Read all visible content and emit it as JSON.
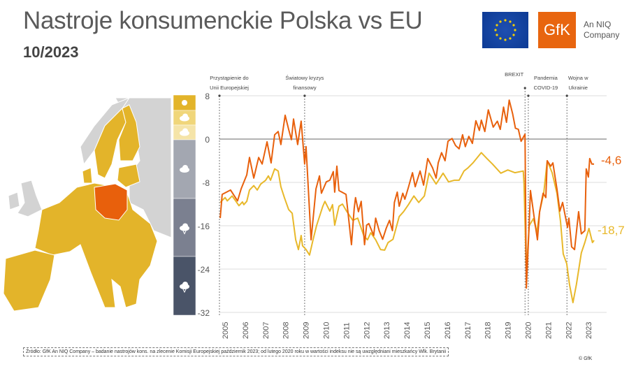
{
  "header": {
    "title": "Nastroje konsumenckie Polska vs EU",
    "subtitle": "10/2023",
    "gfk_logo": "GfK",
    "niq_line1": "An NIQ",
    "niq_line2": "Company"
  },
  "colors": {
    "poland": "#e8600c",
    "eu": "#e8b82a",
    "eu_map": "#e3b42a",
    "map_other": "#d3d3d3",
    "band_colors": [
      "#e3b42a",
      "#f0d67a",
      "#f5e4a8",
      "#a3a7b1",
      "#7b8090",
      "#4a5468"
    ]
  },
  "weather_bands": [
    {
      "icon": "sun-icon"
    },
    {
      "icon": "sun-cloud-icon"
    },
    {
      "icon": "cloud-light-icon"
    },
    {
      "icon": "cloud-icon"
    },
    {
      "icon": "rain-cloud-icon"
    },
    {
      "icon": "storm-cloud-icon"
    }
  ],
  "chart_data": {
    "type": "line",
    "ylim": [
      -32,
      8
    ],
    "yticks": [
      "8",
      "0",
      "-8",
      "-16",
      "-24",
      "-32"
    ],
    "ytick_values": [
      8,
      0,
      -8,
      -16,
      -24,
      -32
    ],
    "xticks": [
      "2005",
      "2006",
      "2007",
      "2008",
      "2009",
      "2010",
      "2011",
      "2012",
      "2013",
      "2014",
      "2015",
      "2016",
      "2017",
      "2018",
      "2019",
      "2020",
      "2021",
      "2022",
      "2023"
    ],
    "grid": true,
    "events": [
      {
        "label1": "Przystąpienie do",
        "label2": "Unii Europejskiej",
        "t": 2004.33
      },
      {
        "label1": "Światowy kryzys",
        "label2": "finansowy",
        "t": 2008.7
      },
      {
        "label1": "BREXIT",
        "label2": "",
        "t": 2020.0
      },
      {
        "label1": "Pandemia",
        "label2": "COVID-19",
        "t": 2020.17
      },
      {
        "label1": "Wojna w",
        "label2": "Ukrainie",
        "t": 2022.15
      }
    ],
    "series": [
      {
        "key": "poland",
        "end_label": "-4,6",
        "points": [
          [
            2004.37,
            -14.6
          ],
          [
            2004.47,
            -10.2
          ],
          [
            2004.9,
            -9.4
          ],
          [
            2005.26,
            -11.4
          ],
          [
            2005.44,
            -9.2
          ],
          [
            2005.73,
            -6.6
          ],
          [
            2005.87,
            -3.4
          ],
          [
            2006.09,
            -7.2
          ],
          [
            2006.34,
            -3.4
          ],
          [
            2006.52,
            -4.6
          ],
          [
            2006.77,
            -0.5
          ],
          [
            2006.98,
            -4.4
          ],
          [
            2007.16,
            0.8
          ],
          [
            2007.34,
            1.4
          ],
          [
            2007.48,
            -1
          ],
          [
            2007.7,
            4.4
          ],
          [
            2007.88,
            1.8
          ],
          [
            2008.02,
            -0.1
          ],
          [
            2008.13,
            3.7
          ],
          [
            2008.34,
            -1
          ],
          [
            2008.52,
            3.3
          ],
          [
            2008.7,
            -4.6
          ],
          [
            2008.77,
            -1.4
          ],
          [
            2009.03,
            -18.6
          ],
          [
            2009.28,
            -9.2
          ],
          [
            2009.46,
            -6.8
          ],
          [
            2009.56,
            -10
          ],
          [
            2009.81,
            -7.9
          ],
          [
            2009.99,
            -7.6
          ],
          [
            2010.17,
            -6
          ],
          [
            2010.24,
            -9.8
          ],
          [
            2010.35,
            -5
          ],
          [
            2010.46,
            -9.5
          ],
          [
            2010.82,
            -10.2
          ],
          [
            2011.1,
            -19.5
          ],
          [
            2011.24,
            -12.8
          ],
          [
            2011.31,
            -10.8
          ],
          [
            2011.46,
            -13.4
          ],
          [
            2011.6,
            -11.5
          ],
          [
            2011.77,
            -19.5
          ],
          [
            2011.88,
            -15.9
          ],
          [
            2011.99,
            -15.6
          ],
          [
            2012.24,
            -17.8
          ],
          [
            2012.34,
            -14.6
          ],
          [
            2012.52,
            -16.9
          ],
          [
            2012.7,
            -18.5
          ],
          [
            2012.88,
            -16.5
          ],
          [
            2013.05,
            -15
          ],
          [
            2013.2,
            -16.9
          ],
          [
            2013.3,
            -11.7
          ],
          [
            2013.45,
            -9.8
          ],
          [
            2013.55,
            -12.4
          ],
          [
            2013.73,
            -10
          ],
          [
            2013.84,
            -11.1
          ],
          [
            2014.02,
            -8.9
          ],
          [
            2014.23,
            -6.2
          ],
          [
            2014.37,
            -8.8
          ],
          [
            2014.62,
            -5.9
          ],
          [
            2014.8,
            -8.5
          ],
          [
            2015.01,
            -3.6
          ],
          [
            2015.26,
            -5.3
          ],
          [
            2015.44,
            -7.2
          ],
          [
            2015.55,
            -4.4
          ],
          [
            2015.72,
            -2.5
          ],
          [
            2015.9,
            -4
          ],
          [
            2016.05,
            -0.4
          ],
          [
            2016.26,
            0.1
          ],
          [
            2016.44,
            -1.2
          ],
          [
            2016.62,
            -1.8
          ],
          [
            2016.8,
            0.8
          ],
          [
            2016.94,
            -1.4
          ],
          [
            2017.12,
            0.5
          ],
          [
            2017.3,
            -0.8
          ],
          [
            2017.48,
            3.4
          ],
          [
            2017.66,
            1.6
          ],
          [
            2017.76,
            3.5
          ],
          [
            2017.94,
            1.4
          ],
          [
            2018.12,
            5.4
          ],
          [
            2018.37,
            2.2
          ],
          [
            2018.58,
            3.3
          ],
          [
            2018.73,
            1.8
          ],
          [
            2018.9,
            5.9
          ],
          [
            2019.05,
            3.1
          ],
          [
            2019.19,
            7.2
          ],
          [
            2019.37,
            4.6
          ],
          [
            2019.51,
            2
          ],
          [
            2019.66,
            1.8
          ],
          [
            2019.8,
            -0.4
          ],
          [
            2020.0,
            0.9
          ],
          [
            2020.07,
            -27.5
          ],
          [
            2020.21,
            -16
          ],
          [
            2020.28,
            -9.5
          ],
          [
            2020.5,
            -15.2
          ],
          [
            2020.64,
            -18.6
          ],
          [
            2020.75,
            -13.4
          ],
          [
            2020.93,
            -10
          ],
          [
            2021.07,
            -10.8
          ],
          [
            2021.14,
            -4
          ],
          [
            2021.32,
            -5
          ],
          [
            2021.43,
            -4.4
          ],
          [
            2021.64,
            -9.2
          ],
          [
            2021.79,
            -13.3
          ],
          [
            2021.93,
            -11.7
          ],
          [
            2022.18,
            -16.3
          ],
          [
            2022.25,
            -14.6
          ],
          [
            2022.39,
            -19.9
          ],
          [
            2022.54,
            -20.4
          ],
          [
            2022.75,
            -13.4
          ],
          [
            2022.89,
            -17.5
          ],
          [
            2023.07,
            -16.9
          ],
          [
            2023.14,
            -5.5
          ],
          [
            2023.25,
            -7
          ],
          [
            2023.32,
            -3.6
          ],
          [
            2023.43,
            -4.6
          ],
          [
            2023.54,
            -4.6
          ]
        ]
      },
      {
        "key": "eu",
        "end_label": "-18,7",
        "points": [
          [
            2004.37,
            -11.7
          ],
          [
            2004.62,
            -10.8
          ],
          [
            2004.73,
            -11.4
          ],
          [
            2004.98,
            -10.5
          ],
          [
            2005.16,
            -11.4
          ],
          [
            2005.33,
            -12.3
          ],
          [
            2005.51,
            -11.6
          ],
          [
            2005.58,
            -12.1
          ],
          [
            2005.73,
            -11.5
          ],
          [
            2005.87,
            -9.4
          ],
          [
            2006.09,
            -8.6
          ],
          [
            2006.27,
            -9.4
          ],
          [
            2006.45,
            -8.3
          ],
          [
            2006.7,
            -7.6
          ],
          [
            2006.84,
            -6.8
          ],
          [
            2006.95,
            -7.6
          ],
          [
            2007.16,
            -5.5
          ],
          [
            2007.34,
            -5.9
          ],
          [
            2007.48,
            -8.8
          ],
          [
            2007.66,
            -10.8
          ],
          [
            2007.88,
            -13
          ],
          [
            2008.06,
            -13.7
          ],
          [
            2008.24,
            -18.6
          ],
          [
            2008.38,
            -20.4
          ],
          [
            2008.52,
            -17.8
          ],
          [
            2008.59,
            -19.7
          ],
          [
            2008.77,
            -20.4
          ],
          [
            2008.95,
            -21.4
          ],
          [
            2009.13,
            -18.6
          ],
          [
            2009.31,
            -16
          ],
          [
            2009.63,
            -12.4
          ],
          [
            2009.74,
            -11.5
          ],
          [
            2009.99,
            -13.3
          ],
          [
            2010.13,
            -12.1
          ],
          [
            2010.24,
            -15.9
          ],
          [
            2010.46,
            -12.4
          ],
          [
            2010.64,
            -12
          ],
          [
            2010.85,
            -13.3
          ],
          [
            2011.17,
            -15
          ],
          [
            2011.42,
            -14.6
          ],
          [
            2011.74,
            -17.9
          ],
          [
            2011.92,
            -18.6
          ],
          [
            2012.09,
            -17.3
          ],
          [
            2012.34,
            -18.6
          ],
          [
            2012.59,
            -20.4
          ],
          [
            2012.8,
            -20.5
          ],
          [
            2012.98,
            -19.1
          ],
          [
            2013.23,
            -18.5
          ],
          [
            2013.55,
            -14.3
          ],
          [
            2013.77,
            -13.4
          ],
          [
            2014.02,
            -12.1
          ],
          [
            2014.3,
            -10.5
          ],
          [
            2014.55,
            -11.7
          ],
          [
            2014.84,
            -10.5
          ],
          [
            2015.08,
            -6.3
          ],
          [
            2015.44,
            -8.3
          ],
          [
            2015.8,
            -6.3
          ],
          [
            2016.08,
            -7.9
          ],
          [
            2016.37,
            -7.6
          ],
          [
            2016.62,
            -7.6
          ],
          [
            2016.87,
            -5.9
          ],
          [
            2017.08,
            -5.3
          ],
          [
            2017.33,
            -4.4
          ],
          [
            2017.76,
            -2.5
          ],
          [
            2018.05,
            -3.6
          ],
          [
            2018.33,
            -4.6
          ],
          [
            2018.76,
            -6.3
          ],
          [
            2019.12,
            -5.7
          ],
          [
            2019.48,
            -6.2
          ],
          [
            2019.91,
            -5.9
          ],
          [
            2019.95,
            -8.3
          ],
          [
            2020.07,
            -24.6
          ],
          [
            2020.21,
            -16
          ],
          [
            2020.43,
            -14.7
          ],
          [
            2020.61,
            -17.2
          ],
          [
            2020.75,
            -13.4
          ],
          [
            2020.96,
            -10
          ],
          [
            2021.14,
            -4
          ],
          [
            2021.39,
            -6.2
          ],
          [
            2021.64,
            -10
          ],
          [
            2021.82,
            -15.2
          ],
          [
            2021.96,
            -21.2
          ],
          [
            2022.14,
            -23
          ],
          [
            2022.28,
            -26.8
          ],
          [
            2022.46,
            -30.2
          ],
          [
            2022.64,
            -26.8
          ],
          [
            2022.89,
            -21
          ],
          [
            2023.07,
            -19.1
          ],
          [
            2023.28,
            -16.5
          ],
          [
            2023.46,
            -19.1
          ],
          [
            2023.54,
            -18.7
          ]
        ]
      }
    ]
  },
  "footer": {
    "source": "Źródło: GfK An NIQ Company – badanie nastrojów kons. na zlecenie Komisji Europejskiej październik 2023; od lutego 2020 roku w wartości indeksu nie są uwzględniani mieszkańcy Wlk. Brytanii",
    "copyright": "© GfK"
  }
}
